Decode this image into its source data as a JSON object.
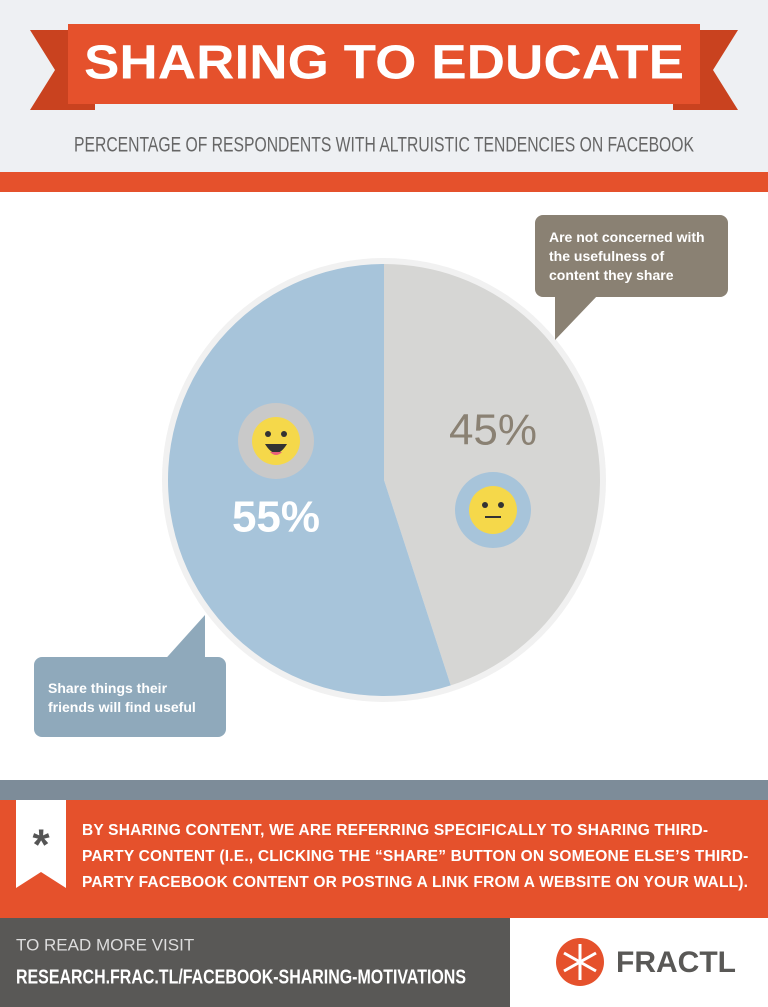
{
  "chart_data": {
    "type": "pie",
    "title": "SHARING TO EDUCATE",
    "subtitle": "PERCENTAGE OF RESPONDENTS WITH ALTRUISTIC TENDENCIES ON FACEBOOK",
    "categories": [
      "Share things their friends will find useful",
      "Are not concerned with the usefulness of content they share"
    ],
    "values": [
      55,
      45
    ],
    "value_labels": [
      "55%",
      "45%"
    ],
    "colors": [
      "#a7c4da",
      "#d6d6d4"
    ]
  },
  "footnote": {
    "mark": "*",
    "text": "By sharing content, we are referring specifically to sharing third-party content (i.e., clicking the “share” button on someone else’s third-party Facebook content or posting a link from a website on your wall)."
  },
  "footer": {
    "prompt": "TO READ MORE VISIT",
    "url": "RESEARCH.FRAC.TL/FACEBOOK-SHARING-MOTIVATIONS",
    "brand": "FRACTL"
  }
}
